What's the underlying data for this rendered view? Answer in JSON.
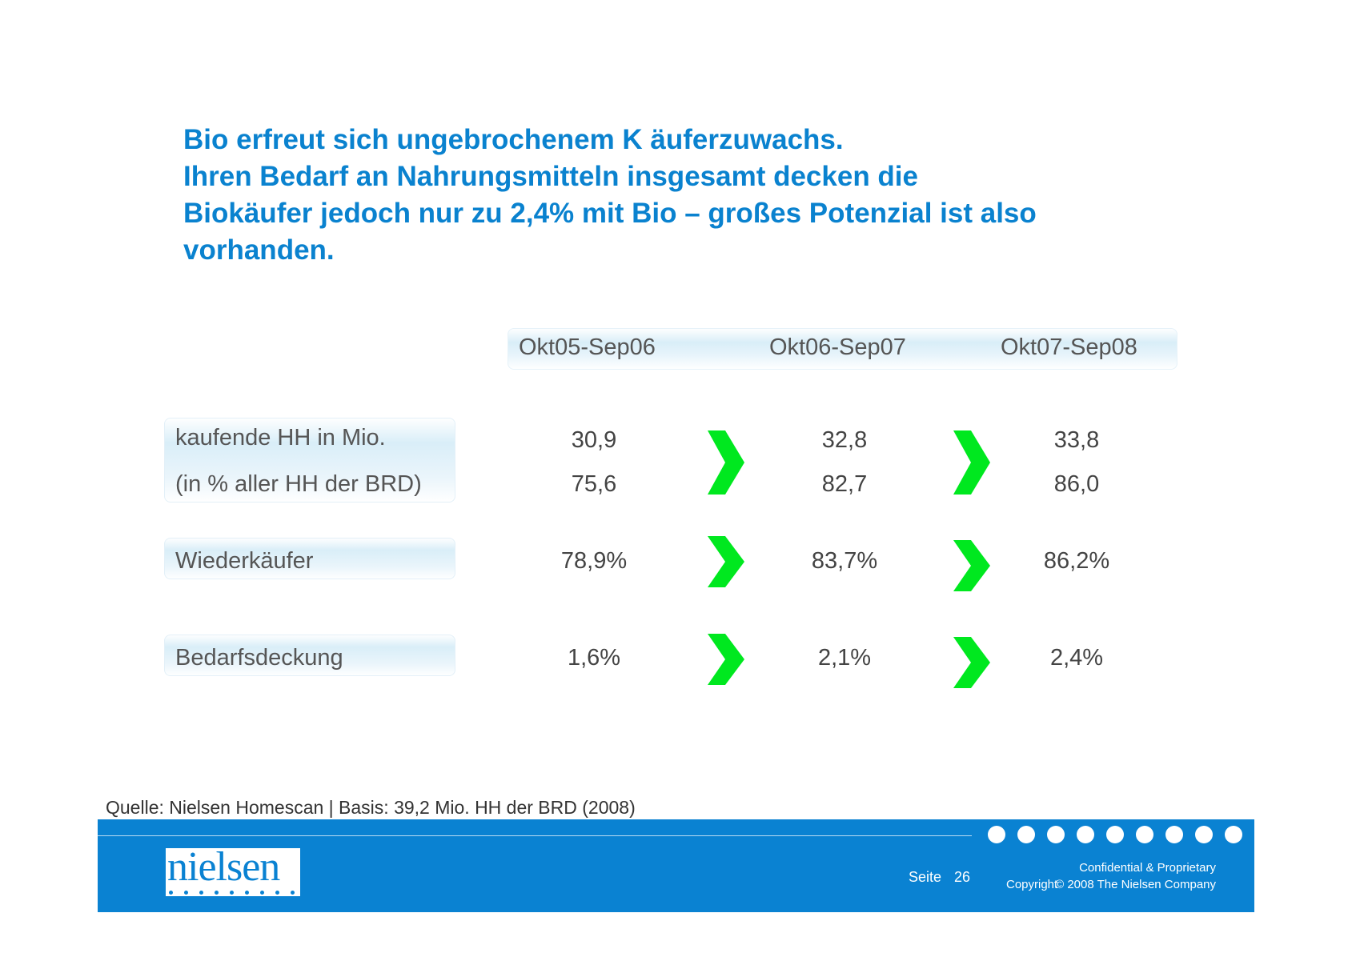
{
  "title": {
    "lines": [
      "Bio erfreut sich ungebrochenem K   äuferzuwachs.",
      "Ihren Bedarf an Nahrungsmitteln insgesamt decken die",
      "Biokäufer jedoch nur zu 2,4% mit Bio    – großes Potenzial ist also",
      "vorhanden."
    ]
  },
  "table": {
    "columns": [
      "Okt05-Sep06",
      "Okt06-Sep07",
      "Okt07-Sep08"
    ],
    "rows": [
      {
        "label": "kaufende HH in Mio.",
        "values": [
          "30,9",
          "32,8",
          "33,8"
        ]
      },
      {
        "label": "(in % aller HH der BRD)",
        "values": [
          "75,6",
          "82,7",
          "86,0"
        ]
      },
      {
        "label": "Wiederkäufer",
        "values": [
          "78,9%",
          "83,7%",
          "86,2%"
        ]
      },
      {
        "label": "Bedarfsdeckung",
        "values": [
          "1,6%",
          "2,1%",
          "2,4%"
        ]
      }
    ],
    "arrow_color": "#00e81f",
    "arrow_icon": "chevron-right-icon"
  },
  "source": "Quelle: Nielsen Homescan | Basis: 39,2 Mio. HH der BRD (2008)",
  "footer": {
    "logo": "nielsen",
    "page_label": "Seite",
    "page_number": "26",
    "confidential": "Confidential & Proprietary",
    "copyright_label": "Copyright",
    "copyright_text": "© 2008 The Nielsen Company",
    "color": "#0a82d2"
  }
}
